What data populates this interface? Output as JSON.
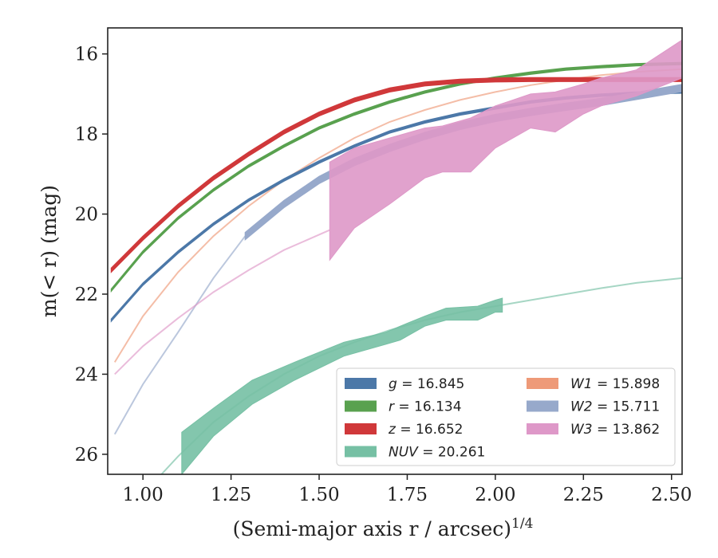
{
  "chart_data": {
    "type": "line",
    "xlabel": "(Semi-major axis r / arcsec)",
    "xlabel_exponent": "1/4",
    "ylabel": "m(< r) (mag)",
    "xlim": [
      0.9,
      2.53
    ],
    "ylim": [
      26.5,
      15.35
    ],
    "y_inverted": true,
    "x_ticks": [
      1.0,
      1.25,
      1.5,
      1.75,
      2.0,
      2.25,
      2.5
    ],
    "x_tick_labels": [
      "1.00",
      "1.25",
      "1.50",
      "1.75",
      "2.00",
      "2.25",
      "2.50"
    ],
    "y_ticks": [
      16,
      18,
      20,
      22,
      24,
      26
    ],
    "y_tick_labels": [
      "16",
      "18",
      "20",
      "22",
      "24",
      "26"
    ],
    "grid": false,
    "legend_position": "lower-right",
    "legend": [
      {
        "name": "g",
        "value": "16.845",
        "color": "#4c78a8"
      },
      {
        "name": "r",
        "value": "16.134",
        "color": "#59a14f"
      },
      {
        "name": "z",
        "value": "16.652",
        "color": "#d0383a"
      },
      {
        "name": "NUV",
        "value": "20.261",
        "color": "#76c0a4"
      },
      {
        "name": "W1",
        "value": "15.898",
        "color": "#ee9a78"
      },
      {
        "name": "W2",
        "value": "15.711",
        "color": "#97a9cb"
      },
      {
        "name": "W3",
        "value": "13.862",
        "color": "#de98c8"
      }
    ],
    "series": [
      {
        "name": "g",
        "color": "#4c78a8",
        "style": "band",
        "x": [
          0.91,
          1.0,
          1.1,
          1.2,
          1.3,
          1.4,
          1.5,
          1.6,
          1.7,
          1.8,
          1.9,
          2.0,
          2.1,
          2.2,
          2.3,
          2.4,
          2.53
        ],
        "y": [
          22.65,
          21.75,
          20.95,
          20.25,
          19.65,
          19.15,
          18.7,
          18.3,
          17.95,
          17.7,
          17.5,
          17.35,
          17.2,
          17.1,
          17.03,
          16.98,
          16.95
        ],
        "band_width": 0.06
      },
      {
        "name": "r",
        "color": "#59a14f",
        "style": "band",
        "x": [
          0.91,
          1.0,
          1.1,
          1.2,
          1.3,
          1.4,
          1.5,
          1.6,
          1.7,
          1.8,
          1.9,
          2.0,
          2.1,
          2.2,
          2.3,
          2.4,
          2.53
        ],
        "y": [
          21.9,
          20.95,
          20.1,
          19.4,
          18.8,
          18.3,
          17.85,
          17.5,
          17.2,
          16.95,
          16.75,
          16.6,
          16.48,
          16.38,
          16.32,
          16.27,
          16.24
        ],
        "band_width": 0.06
      },
      {
        "name": "z",
        "color": "#d0383a",
        "style": "band",
        "x": [
          0.91,
          1.0,
          1.1,
          1.2,
          1.3,
          1.4,
          1.5,
          1.6,
          1.7,
          1.8,
          1.9,
          2.0,
          2.1,
          2.2,
          2.3,
          2.4,
          2.53
        ],
        "y": [
          21.4,
          20.6,
          19.8,
          19.1,
          18.5,
          17.95,
          17.5,
          17.15,
          16.9,
          16.75,
          16.68,
          16.65,
          16.64,
          16.64,
          16.64,
          16.64,
          16.64
        ],
        "band_width": 0.1
      },
      {
        "name": "NUV",
        "color": "#76c0a4",
        "style": "line",
        "x": [
          1.0,
          1.1,
          1.2,
          1.3,
          1.4,
          1.5,
          1.6,
          1.7,
          1.8,
          1.9,
          2.0,
          2.1,
          2.2,
          2.3,
          2.4,
          2.53
        ],
        "y": [
          27.0,
          26.05,
          25.2,
          24.55,
          24.0,
          23.55,
          23.2,
          22.9,
          22.65,
          22.45,
          22.3,
          22.15,
          22.0,
          21.85,
          21.72,
          21.6
        ]
      },
      {
        "name": "NUV",
        "color": "#76c0a4",
        "style": "band_range",
        "x": [
          1.11,
          1.2,
          1.31,
          1.43,
          1.57,
          1.69,
          1.73,
          1.8,
          1.86,
          1.95,
          2.0,
          2.02
        ],
        "y_upper": [
          25.45,
          24.85,
          24.15,
          23.7,
          23.2,
          22.95,
          22.8,
          22.55,
          22.35,
          22.3,
          22.15,
          22.1
        ],
        "y_lower": [
          26.5,
          25.55,
          24.75,
          24.15,
          23.55,
          23.25,
          23.15,
          22.8,
          22.65,
          22.65,
          22.45,
          22.45
        ]
      },
      {
        "name": "W1",
        "color": "#ee9a78",
        "style": "line",
        "x": [
          0.92,
          1.0,
          1.1,
          1.2,
          1.3,
          1.4,
          1.5,
          1.6,
          1.7,
          1.8,
          1.9,
          2.0,
          2.1,
          2.2,
          2.3,
          2.4,
          2.53
        ],
        "y": [
          23.7,
          22.55,
          21.45,
          20.55,
          19.8,
          19.15,
          18.6,
          18.1,
          17.7,
          17.4,
          17.15,
          16.95,
          16.78,
          16.65,
          16.53,
          16.45,
          16.38
        ]
      },
      {
        "name": "W2",
        "color": "#97a9cb",
        "style": "line",
        "x": [
          0.92,
          1.0,
          1.1,
          1.2,
          1.29
        ],
        "y": [
          25.5,
          24.25,
          22.95,
          21.6,
          20.55
        ]
      },
      {
        "name": "W2",
        "color": "#97a9cb",
        "style": "band",
        "x": [
          1.29,
          1.4,
          1.5,
          1.6,
          1.7,
          1.8,
          1.9,
          2.0,
          2.1,
          2.2,
          2.3,
          2.4,
          2.53
        ],
        "y": [
          20.55,
          19.75,
          19.15,
          18.7,
          18.35,
          18.05,
          17.8,
          17.6,
          17.45,
          17.32,
          17.2,
          17.05,
          16.85
        ],
        "band_width": 0.18
      },
      {
        "name": "W3",
        "color": "#de98c8",
        "style": "line",
        "x": [
          0.92,
          1.0,
          1.1,
          1.2,
          1.3,
          1.4,
          1.53
        ],
        "y": [
          24.0,
          23.3,
          22.6,
          21.95,
          21.4,
          20.9,
          20.4
        ]
      },
      {
        "name": "W3",
        "color": "#de98c8",
        "style": "band_range",
        "x": [
          1.53,
          1.6,
          1.7,
          1.8,
          1.85,
          1.93,
          2.0,
          2.1,
          2.17,
          2.25,
          2.3,
          2.4,
          2.53
        ],
        "y_upper": [
          18.7,
          18.35,
          18.1,
          17.85,
          17.8,
          17.6,
          17.3,
          17.0,
          16.95,
          16.75,
          16.6,
          16.4,
          15.65
        ],
        "y_lower": [
          21.15,
          20.35,
          19.75,
          19.1,
          18.95,
          18.95,
          18.35,
          17.85,
          17.95,
          17.5,
          17.3,
          17.05,
          16.6
        ]
      }
    ]
  }
}
